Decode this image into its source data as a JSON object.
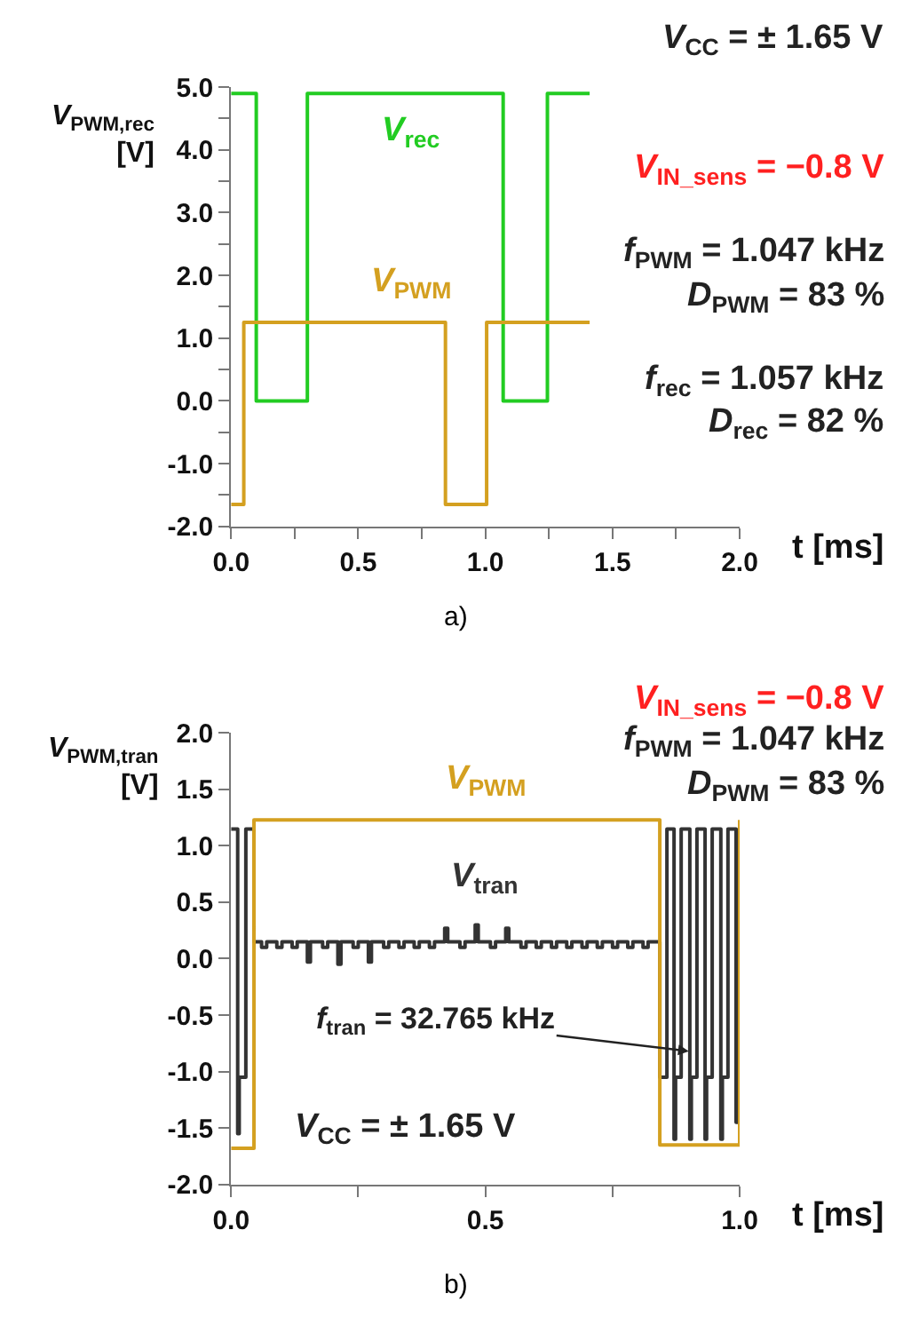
{
  "chart_data": [
    {
      "type": "step",
      "xlabel": "t [ms]",
      "ylabel": "V$_{PWM,rec}$\n[V]",
      "xlim": [
        0,
        2
      ],
      "ylim": [
        -2,
        5
      ],
      "xticks": [
        {
          "value": 0,
          "label": "0.0"
        },
        {
          "value": 0.25,
          "label": null
        },
        {
          "value": 0.5,
          "label": "0.5"
        },
        {
          "value": 0.75,
          "label": null
        },
        {
          "value": 1,
          "label": "1.0"
        },
        {
          "value": 1.25,
          "label": null
        },
        {
          "value": 1.5,
          "label": "1.5"
        },
        {
          "value": 1.75,
          "label": null
        },
        {
          "value": 2,
          "label": "2.0"
        }
      ],
      "yticks": [
        {
          "value": -2,
          "label": "-2.0"
        },
        {
          "value": -1.5,
          "label": null
        },
        {
          "value": -1,
          "label": "-1.0"
        },
        {
          "value": -0.5,
          "label": null
        },
        {
          "value": 0,
          "label": "0.0"
        },
        {
          "value": 0.5,
          "label": null
        },
        {
          "value": 1,
          "label": "1.0"
        },
        {
          "value": 1.5,
          "label": null
        },
        {
          "value": 2,
          "label": "2.0"
        },
        {
          "value": 2.5,
          "label": null
        },
        {
          "value": 3,
          "label": "3.0"
        },
        {
          "value": 3.5,
          "label": null
        },
        {
          "value": 4,
          "label": "4.0"
        },
        {
          "value": 4.5,
          "label": null
        },
        {
          "value": 5,
          "label": "5.0"
        }
      ],
      "series": [
        {
          "name": "V$_{rec}$",
          "color": "#22cc22",
          "x": [
            0,
            0.099,
            0.3,
            1.07,
            1.244,
            1.41
          ],
          "values": [
            4.9,
            0,
            4.9,
            0,
            4.9,
            4.9
          ]
        },
        {
          "name": "V$_{PWM}$",
          "color": "#d4a020",
          "x": [
            0,
            0.05,
            0.843,
            1.005,
            1.41
          ],
          "values": [
            -1.65,
            1.25,
            -1.65,
            1.25,
            1.25
          ]
        }
      ],
      "annotations": [
        "V$_{CC}$ = ± 1.65 V",
        "V$_{IN_sens}$ = −0.8 V",
        "f$_{PWM}$ = 1.047 kHz",
        "D$_{PWM}$ = 83 %",
        "f$_{rec}$ = 1.057 kHz",
        "D$_{rec}$ = 82 %",
        "a)"
      ]
    },
    {
      "type": "step",
      "xlabel": "t [ms]",
      "ylabel": "V$_{PWM,tran}$\n[V]",
      "xlim": [
        0,
        1
      ],
      "ylim": [
        -2,
        2
      ],
      "xticks": [
        {
          "value": 0,
          "label": "0.0"
        },
        {
          "value": 0.25,
          "label": null
        },
        {
          "value": 0.5,
          "label": "0.5"
        },
        {
          "value": 0.75,
          "label": null
        },
        {
          "value": 1,
          "label": "1.0"
        }
      ],
      "yticks": [
        {
          "value": -2,
          "label": "-2.0"
        },
        {
          "value": -1.5,
          "label": "-1.5"
        },
        {
          "value": -1,
          "label": "-1.0"
        },
        {
          "value": -0.5,
          "label": "-0.5"
        },
        {
          "value": 0,
          "label": "0.0"
        },
        {
          "value": 0.5,
          "label": "0.5"
        },
        {
          "value": 1,
          "label": "1.0"
        },
        {
          "value": 1.5,
          "label": "1.5"
        },
        {
          "value": 2,
          "label": "2.0"
        }
      ],
      "series": [
        {
          "name": "V$_{tran}$",
          "color": "#333333",
          "x": [
            0,
            0.013,
            0.016,
            0.029,
            0.045,
            0.06,
            0.07,
            0.09,
            0.1,
            0.12,
            0.13,
            0.15,
            0.156,
            0.18,
            0.19,
            0.21,
            0.216,
            0.24,
            0.25,
            0.27,
            0.276,
            0.3,
            0.31,
            0.33,
            0.34,
            0.36,
            0.37,
            0.39,
            0.4,
            0.42,
            0.426,
            0.45,
            0.46,
            0.48,
            0.486,
            0.51,
            0.52,
            0.54,
            0.546,
            0.57,
            0.58,
            0.6,
            0.61,
            0.63,
            0.64,
            0.66,
            0.67,
            0.69,
            0.7,
            0.72,
            0.73,
            0.75,
            0.76,
            0.78,
            0.79,
            0.81,
            0.82,
            0.843,
            0.857,
            0.871,
            0.874,
            0.885,
            0.902,
            0.905,
            0.916,
            0.932,
            0.935,
            0.946,
            0.963,
            0.966,
            0.977,
            0.993,
            0.996,
            1.0
          ],
          "values": [
            1.15,
            -1.55,
            -1.05,
            1.15,
            0.15,
            0.1,
            0.15,
            0.1,
            0.15,
            0.1,
            0.15,
            -0.03,
            0.15,
            0.1,
            0.15,
            -0.05,
            0.15,
            0.1,
            0.15,
            -0.03,
            0.15,
            0.1,
            0.15,
            0.1,
            0.15,
            0.1,
            0.15,
            0.1,
            0.15,
            0.27,
            0.15,
            0.1,
            0.15,
            0.3,
            0.15,
            0.1,
            0.15,
            0.27,
            0.15,
            0.1,
            0.15,
            0.1,
            0.15,
            0.1,
            0.15,
            0.1,
            0.15,
            0.1,
            0.15,
            0.1,
            0.15,
            0.1,
            0.15,
            0.1,
            0.15,
            0.1,
            0.15,
            -1.05,
            1.15,
            -1.6,
            -1.05,
            1.15,
            -1.6,
            -1.05,
            1.15,
            -1.6,
            -1.05,
            1.15,
            -1.6,
            -1.05,
            1.15,
            -1.45,
            0.15,
            0.15
          ]
        },
        {
          "name": "V$_{PWM}$",
          "color": "#d4a020",
          "x": [
            0,
            0.045,
            0.843,
            1.0
          ],
          "values": [
            -1.68,
            1.23,
            -1.65,
            1.23
          ]
        }
      ],
      "annotations": [
        "V$_{IN_sens}$ = −0.8 V",
        "f$_{PWM}$ = 1.047 kHz",
        "D$_{PWM}$ = 83 %",
        {
          "text": "f$_{tran}$ = 32.765 kHz",
          "x": 0.9,
          "y": -0.82
        },
        "V$_{CC}$ = ± 1.65 V",
        "b)"
      ]
    }
  ]
}
